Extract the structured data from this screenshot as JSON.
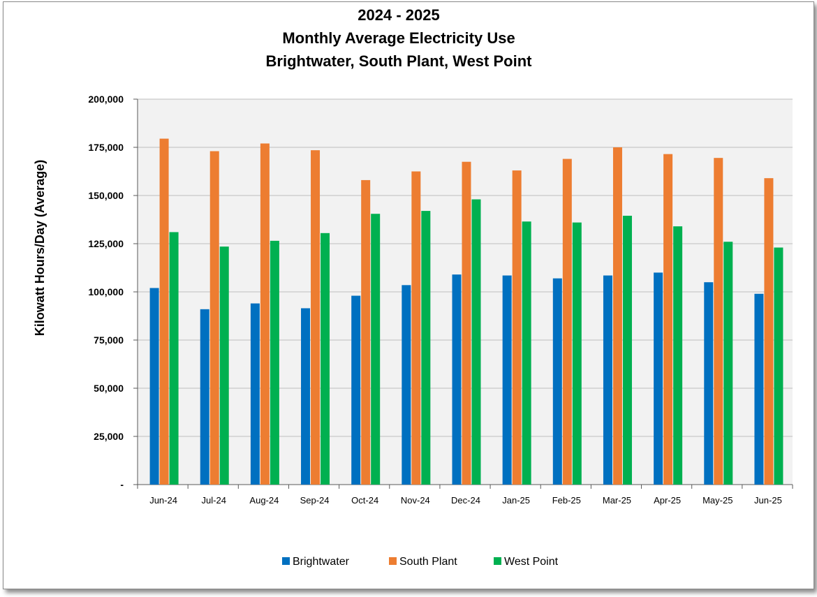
{
  "chart_data": {
    "type": "bar",
    "title_lines": [
      "2024 - 2025",
      "Monthly Average Electricity Use",
      "Brightwater, South Plant, West Point"
    ],
    "xlabel": "",
    "ylabel": "Kilowatt Hours/Day (Average)",
    "ylim": [
      0,
      200000
    ],
    "y_ticks": [
      0,
      25000,
      50000,
      75000,
      100000,
      125000,
      150000,
      175000,
      200000
    ],
    "y_tick_labels": [
      "-",
      "25,000",
      "50,000",
      "75,000",
      "100,000",
      "125,000",
      "150,000",
      "175,000",
      "200,000"
    ],
    "categories": [
      "Jun-24",
      "Jul-24",
      "Aug-24",
      "Sep-24",
      "Oct-24",
      "Nov-24",
      "Dec-24",
      "Jan-25",
      "Feb-25",
      "Mar-25",
      "Apr-25",
      "May-25",
      "Jun-25"
    ],
    "series": [
      {
        "name": "Brightwater",
        "color": "#0070C0",
        "values": [
          102000,
          91000,
          94000,
          91500,
          98000,
          103500,
          109000,
          108500,
          107000,
          108500,
          110000,
          105000,
          99000
        ]
      },
      {
        "name": "South Plant",
        "color": "#ED7D31",
        "values": [
          179500,
          173000,
          177000,
          173500,
          158000,
          162500,
          167500,
          163000,
          169000,
          175000,
          171500,
          169500,
          159000
        ]
      },
      {
        "name": "West Point",
        "color": "#00B050",
        "values": [
          131000,
          123500,
          126500,
          130500,
          140500,
          142000,
          148000,
          136500,
          136000,
          139500,
          134000,
          126000,
          123000
        ]
      }
    ],
    "grid": true,
    "plot_background": "#F2F2F2",
    "legend_position": "bottom"
  }
}
